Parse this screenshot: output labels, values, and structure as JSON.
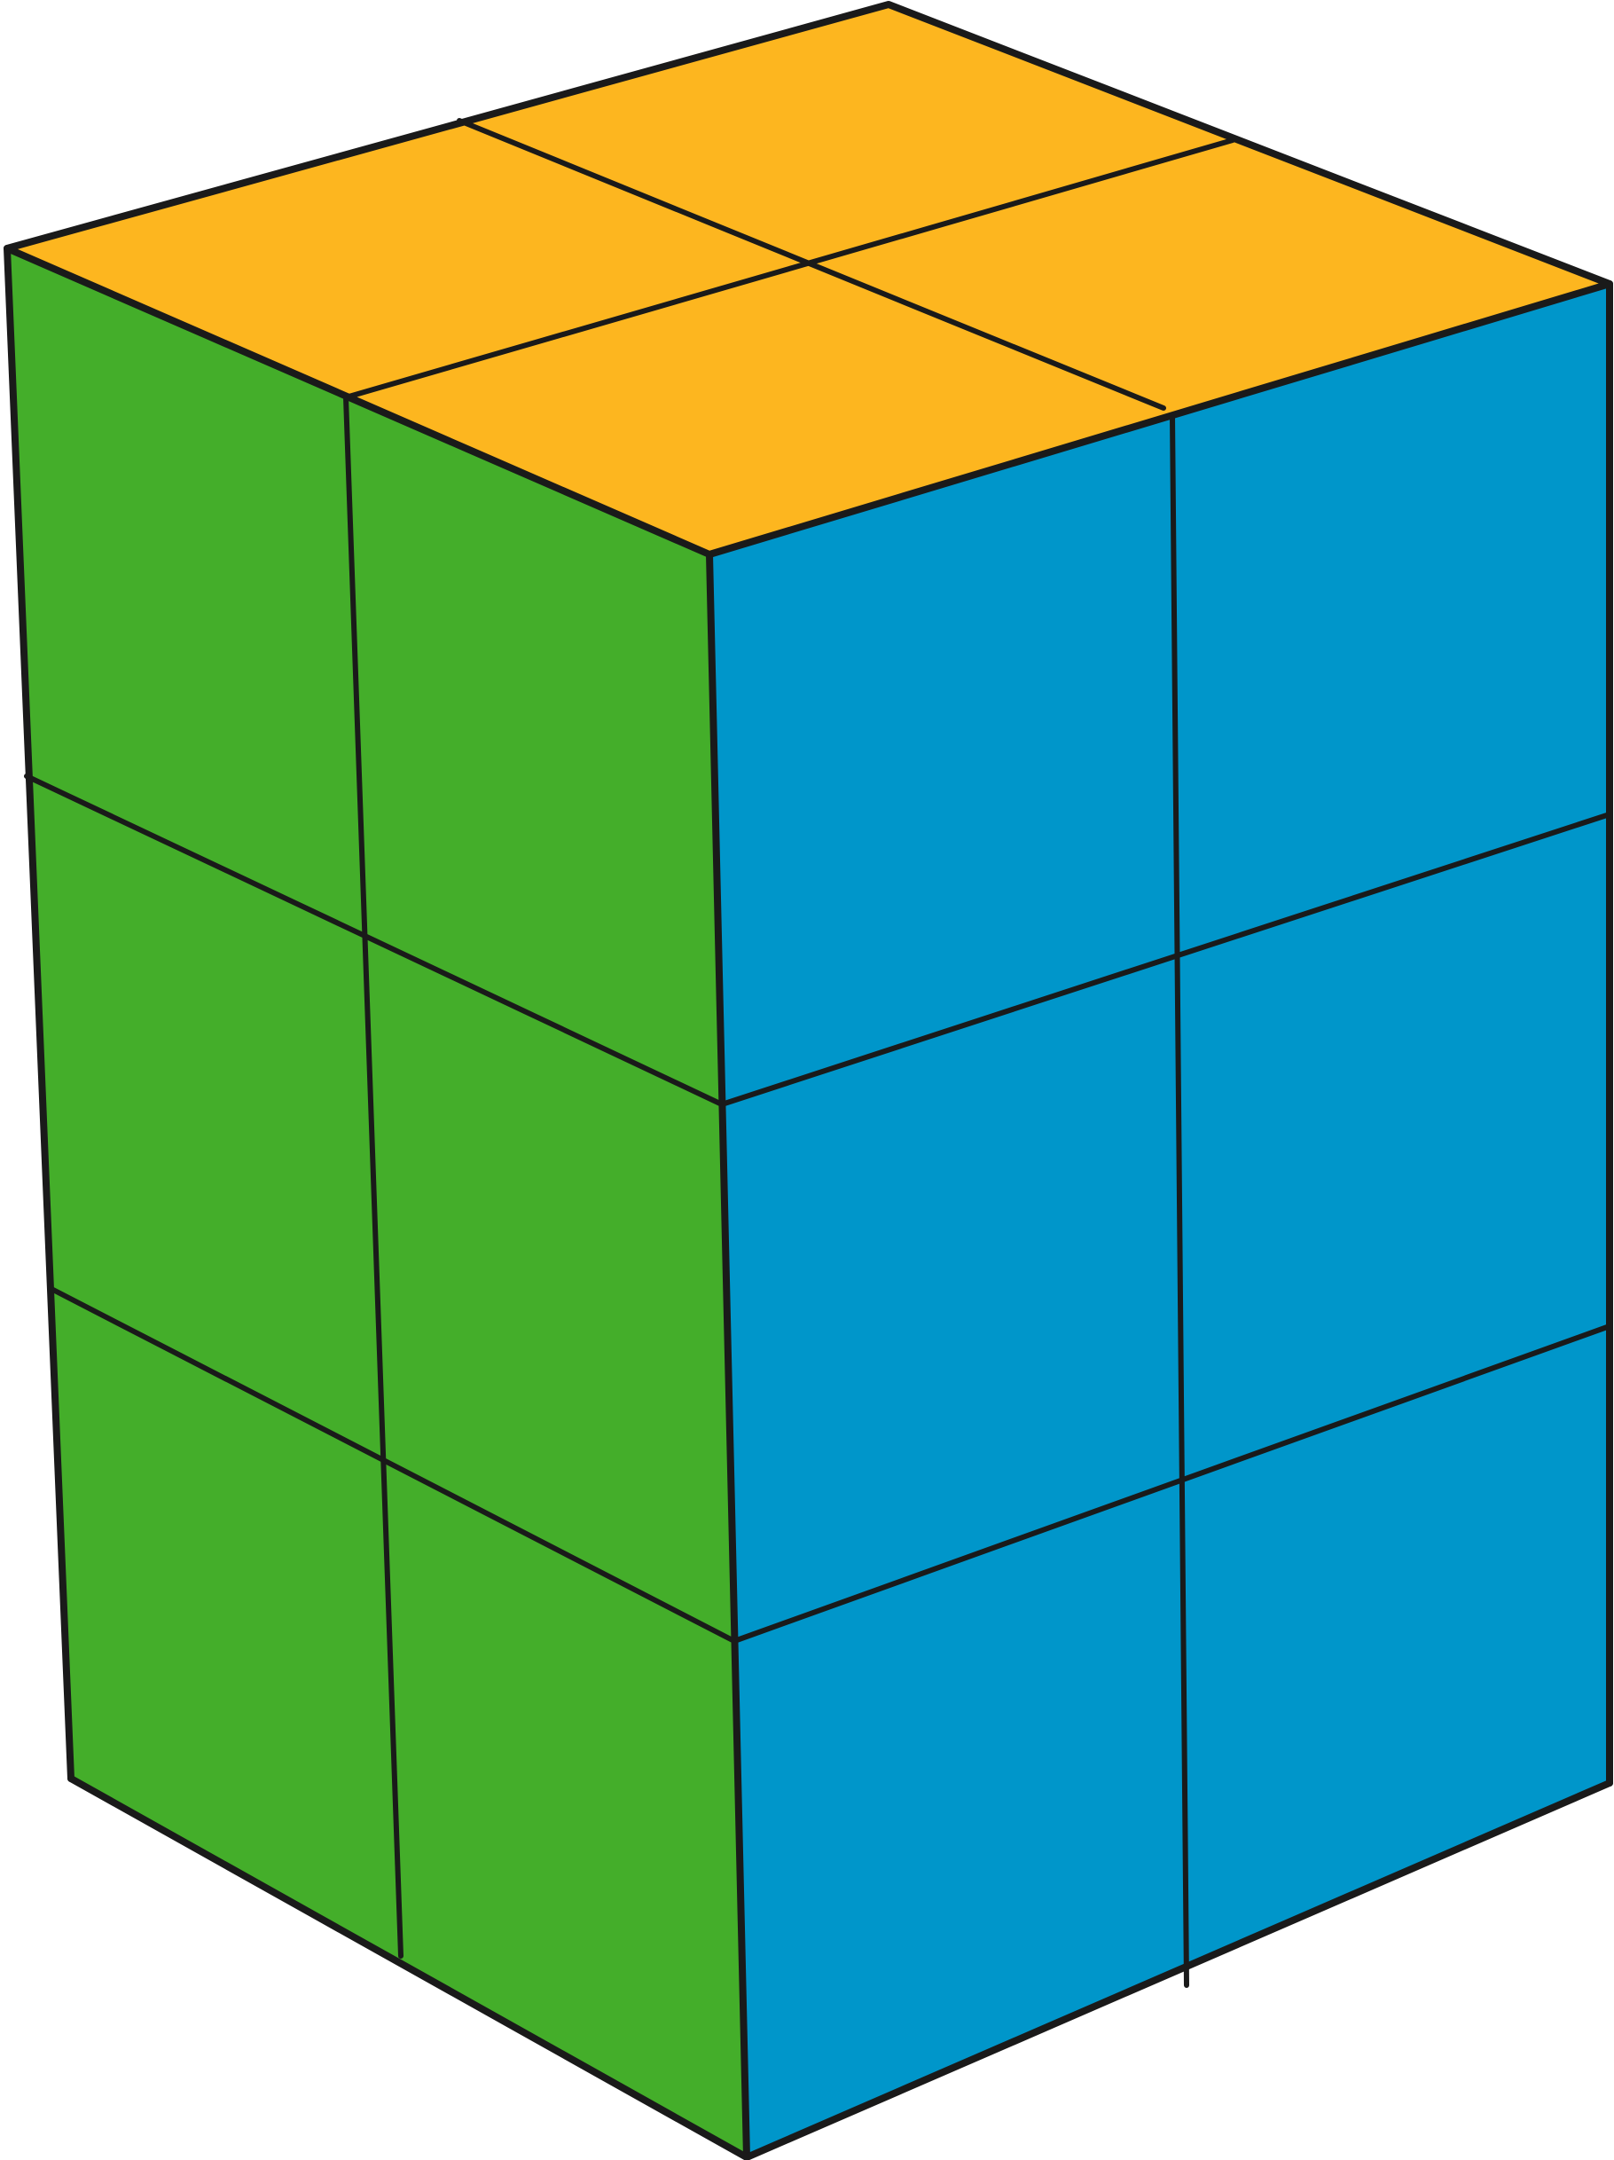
{
  "figure": {
    "description_free": true,
    "shape": "cuboid-of-unit-cubes",
    "grid": {
      "width_cubes": 2,
      "depth_cubes": 2,
      "height_cubes": 3
    },
    "colors": {
      "top": "#FDB61F",
      "left": "#44AE2A",
      "right": "#0096CA",
      "edges": "#1a1a1a",
      "background": "#FFFFFF"
    }
  }
}
